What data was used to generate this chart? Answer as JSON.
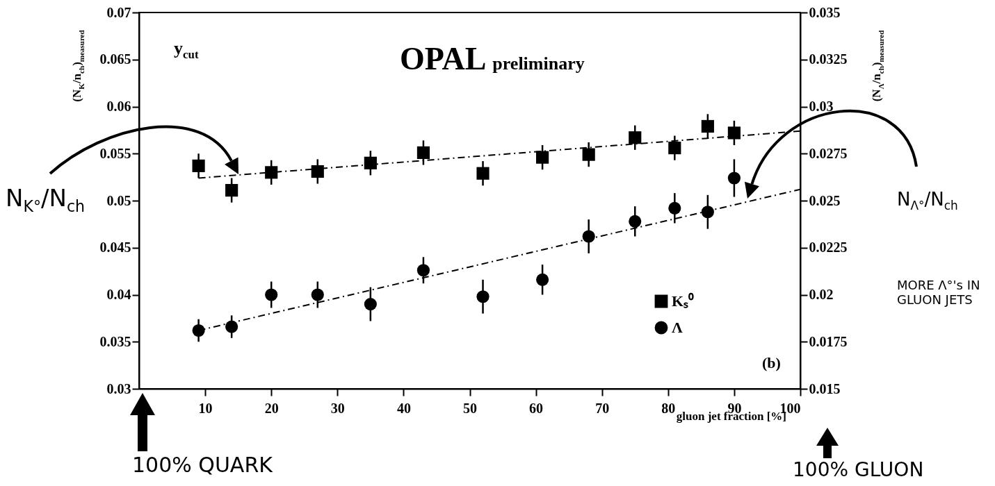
{
  "chart_data": {
    "type": "scatter",
    "title": "OPAL",
    "subtitle": "preliminary",
    "xlabel": "gluon jet fraction [%]",
    "ylabel": "(N$_{K}$/n$_{ch}$)$_{measured}$",
    "y2label": "(N$_{Λ}$/n$_{ch}$)$_{measured}$",
    "annotations": [
      "y$_{cut}$",
      "(b)",
      "N$_{K°}$/N$_{ch}$",
      "N$_{Λ°}$/N$_{ch}$",
      "MORE Λ°'s IN GLUON JETS",
      "100% QUARK",
      "100% GLUON"
    ],
    "xlim": [
      0,
      100
    ],
    "xticks": [
      10,
      20,
      30,
      40,
      50,
      60,
      70,
      80,
      90,
      100
    ],
    "ylim": [
      0.03,
      0.07
    ],
    "yticks": [
      0.03,
      0.035,
      0.04,
      0.045,
      0.05,
      0.055,
      0.06,
      0.065,
      0.07
    ],
    "y2lim": [
      0.015,
      0.035
    ],
    "y2ticks": [
      0.015,
      0.0175,
      0.02,
      0.0225,
      0.025,
      0.0275,
      0.03,
      0.0325,
      0.035
    ],
    "legend": "bottom right",
    "grid": false,
    "series": [
      {
        "name": "Kₛ⁰",
        "type": "scatter",
        "marker": "square",
        "color": "#000000",
        "x": [
          9,
          14,
          20,
          27,
          35,
          43,
          52,
          61,
          68,
          75,
          81,
          86,
          90
        ],
        "values": [
          0.0537,
          0.0511,
          0.053,
          0.0531,
          0.054,
          0.0551,
          0.0529,
          0.0546,
          0.0549,
          0.0567,
          0.0556,
          0.0579,
          0.0572
        ],
        "errors": [
          0.0013,
          0.0013,
          0.0013,
          0.0013,
          0.0013,
          0.0013,
          0.0013,
          0.0013,
          0.0013,
          0.0013,
          0.0013,
          0.0013,
          0.0013
        ]
      },
      {
        "type": "line",
        "line_style": "dashed",
        "color": "#000000",
        "x": [
          9,
          100
        ],
        "values": [
          0.0524,
          0.0574
        ]
      },
      {
        "name": "Λ",
        "type": "scatter",
        "marker": "circle",
        "axis": "y2",
        "color": "#000000",
        "x": [
          9,
          14,
          20,
          27,
          35,
          43,
          52,
          61,
          68,
          75,
          81,
          86,
          90
        ],
        "values": [
          0.0181,
          0.0183,
          0.02,
          0.02,
          0.0195,
          0.0213,
          0.0199,
          0.0208,
          0.0231,
          0.0239,
          0.0246,
          0.0244,
          0.0262
        ],
        "errors": [
          0.0006,
          0.0006,
          0.0007,
          0.0007,
          0.0009,
          0.0007,
          0.0009,
          0.0008,
          0.0009,
          0.0008,
          0.0008,
          0.0009,
          0.001
        ]
      },
      {
        "type": "line",
        "line_style": "dashed",
        "axis": "y2",
        "color": "#000000",
        "x": [
          9,
          100
        ],
        "values": [
          0.0181,
          0.0256
        ]
      }
    ]
  }
}
